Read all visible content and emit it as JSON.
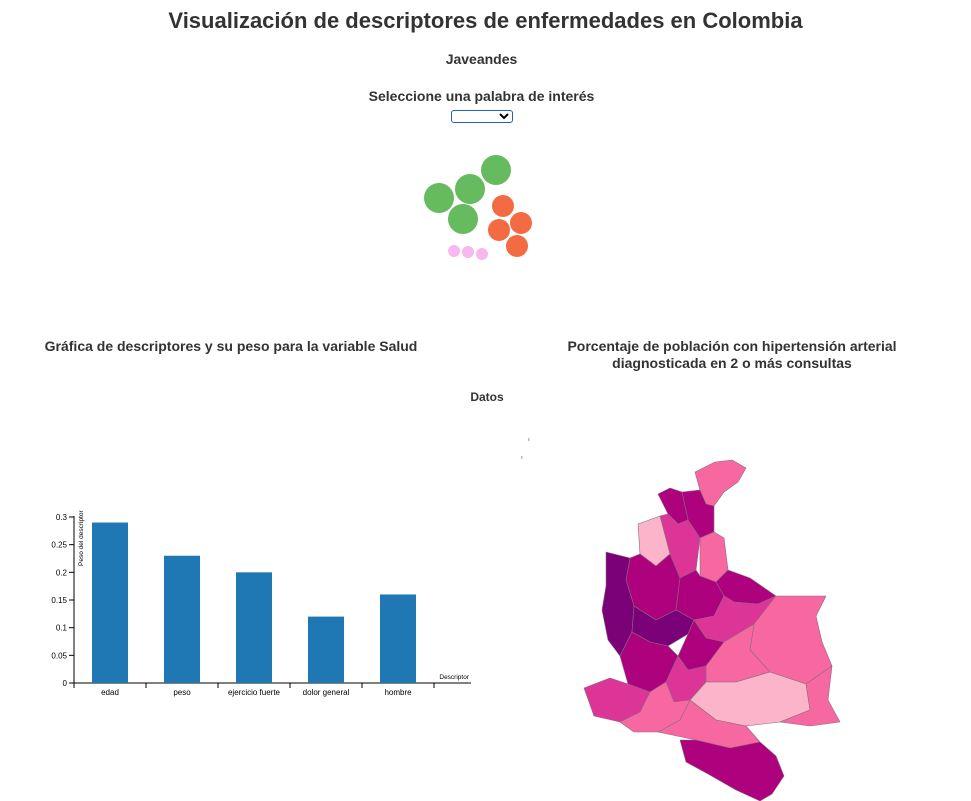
{
  "header": {
    "title": "Visualización de descriptores de enfermedades en Colombia",
    "subtitle": "Javeandes",
    "select_label": "Seleccione una palabra de interés",
    "select_value": ""
  },
  "bubbles": {
    "groups": [
      {
        "color": "#66bb5f",
        "count": 5
      },
      {
        "color": "#f26b43",
        "count": 5
      },
      {
        "color": "#f7b8ef",
        "count": 3
      }
    ]
  },
  "bar_section": {
    "title": "Gráfica de descriptores y su peso para la variable Salud"
  },
  "map_section": {
    "title_line1": "Porcentaje de población con hipertensión arterial",
    "title_line2": "diagnosticada en 2 o más consultas",
    "palette": [
      "#fbb4c9",
      "#f768a1",
      "#dd3497",
      "#ae017e",
      "#7a0177"
    ]
  },
  "data_label": "Datos",
  "chart_data": {
    "type": "bar",
    "title": "",
    "categories": [
      "edad",
      "peso",
      "ejercicio fuerte",
      "dolor general",
      "hombre"
    ],
    "values": [
      0.29,
      0.23,
      0.2,
      0.12,
      0.16
    ],
    "xlabel": "Descriptor",
    "ylabel": "Peso del descriptor",
    "ylim": [
      0,
      0.3
    ],
    "yticks": [
      "0",
      "0.05",
      "0.1",
      "0.15",
      "0.2",
      "0.25",
      "0.3"
    ],
    "bar_color": "#1f77b4",
    "grid": false
  }
}
